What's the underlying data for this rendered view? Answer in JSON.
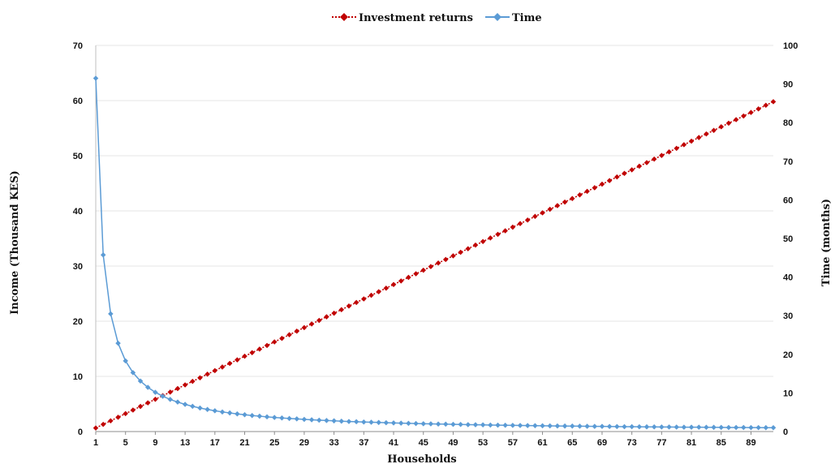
{
  "chart_data": {
    "type": "line",
    "title": "",
    "xlabel": "Households",
    "ylabel_left": "Income (Thousand KES)",
    "ylabel_right": "Time (months)",
    "legend_position": "top",
    "grid": true,
    "x": {
      "start": 1,
      "end": 92,
      "tick_labels": [
        "1",
        "5",
        "9",
        "13",
        "17",
        "21",
        "25",
        "29",
        "33",
        "37",
        "41",
        "45",
        "49",
        "53",
        "57",
        "61",
        "65",
        "69",
        "73",
        "77",
        "81",
        "85",
        "89"
      ]
    },
    "y_left": {
      "min": 0,
      "max": 70,
      "ticks": [
        "0",
        "10",
        "20",
        "30",
        "40",
        "50",
        "60",
        "70"
      ]
    },
    "y_right": {
      "min": 0,
      "max": 100,
      "ticks": [
        "0",
        "10",
        "20",
        "30",
        "40",
        "50",
        "60",
        "70",
        "80",
        "90",
        "100"
      ]
    },
    "series": [
      {
        "name": "Investment returns",
        "axis": "left",
        "color": "#c00000",
        "style": "dotted-diamond",
        "formula": "y = 0.65 * x",
        "values": [
          0.65,
          1.3,
          1.95,
          2.6,
          3.25,
          3.9,
          4.55,
          5.2,
          5.85,
          6.5,
          7.15,
          7.8,
          8.45,
          9.1,
          9.75,
          10.4,
          11.05,
          11.7,
          12.35,
          13.0,
          13.65,
          14.3,
          14.95,
          15.6,
          16.25,
          16.9,
          17.55,
          18.2,
          18.85,
          19.5,
          20.15,
          20.8,
          21.45,
          22.1,
          22.75,
          23.4,
          24.05,
          24.7,
          25.35,
          26.0,
          26.65,
          27.3,
          27.95,
          28.6,
          29.25,
          29.9,
          30.55,
          31.2,
          31.85,
          32.5,
          33.15,
          33.8,
          34.45,
          35.1,
          35.75,
          36.4,
          37.05,
          37.7,
          38.35,
          39.0,
          39.65,
          40.3,
          40.95,
          41.6,
          42.25,
          42.9,
          43.55,
          44.2,
          44.85,
          45.5,
          46.15,
          46.8,
          47.45,
          48.1,
          48.75,
          49.4,
          50.05,
          50.7,
          51.35,
          52.0,
          52.65,
          53.3,
          53.95,
          54.6,
          55.25,
          55.9,
          56.55,
          57.2,
          57.85,
          58.5,
          59.15,
          59.8
        ]
      },
      {
        "name": "Time",
        "axis": "right",
        "color": "#5b9bd5",
        "style": "solid-diamond",
        "formula": "y = 91.5 / x",
        "values": [
          91.5,
          45.75,
          30.5,
          22.88,
          18.3,
          15.25,
          13.07,
          11.44,
          10.17,
          9.15,
          8.32,
          7.63,
          7.04,
          6.54,
          6.1,
          5.72,
          5.38,
          5.08,
          4.82,
          4.58,
          4.36,
          4.16,
          3.98,
          3.81,
          3.66,
          3.52,
          3.39,
          3.27,
          3.16,
          3.05,
          2.95,
          2.86,
          2.77,
          2.69,
          2.61,
          2.54,
          2.47,
          2.41,
          2.35,
          2.29,
          2.23,
          2.18,
          2.13,
          2.08,
          2.03,
          1.99,
          1.95,
          1.91,
          1.87,
          1.83,
          1.79,
          1.76,
          1.73,
          1.69,
          1.66,
          1.63,
          1.61,
          1.58,
          1.55,
          1.53,
          1.5,
          1.48,
          1.45,
          1.43,
          1.41,
          1.39,
          1.37,
          1.35,
          1.33,
          1.31,
          1.29,
          1.27,
          1.25,
          1.24,
          1.22,
          1.2,
          1.19,
          1.17,
          1.16,
          1.14,
          1.13,
          1.12,
          1.1,
          1.09,
          1.08,
          1.06,
          1.05,
          1.04,
          1.03,
          1.02,
          1.01,
          0.99
        ]
      }
    ]
  }
}
